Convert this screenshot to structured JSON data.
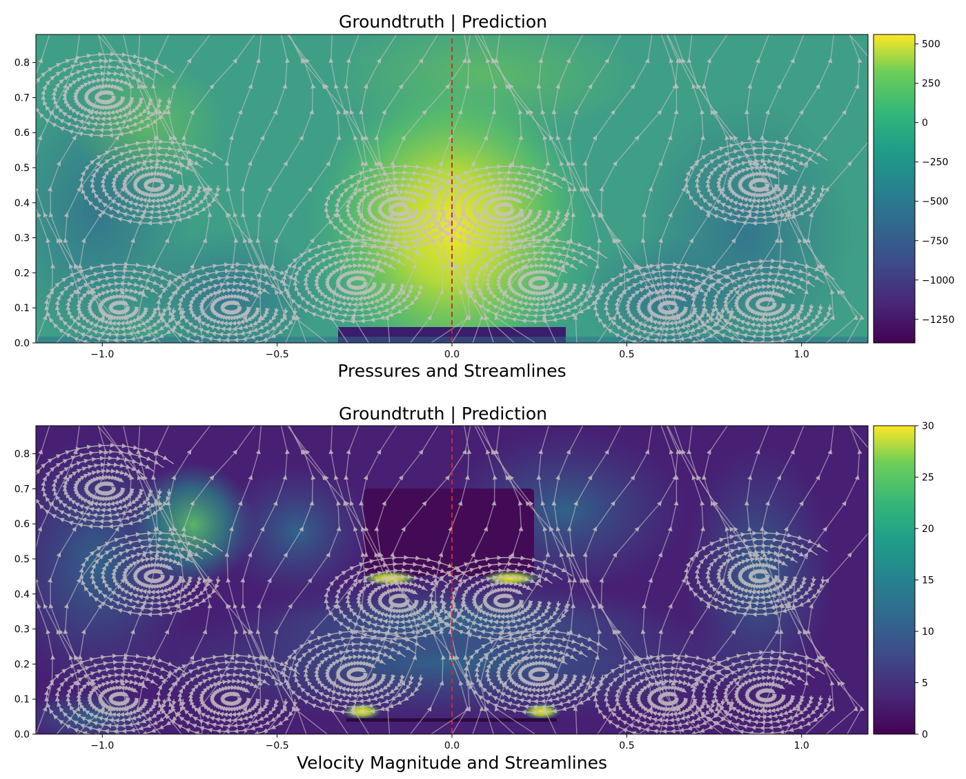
{
  "chart_data": [
    {
      "type": "heatmap",
      "title": "Groundtruth | Prediction",
      "xlabel": "Pressures and Streamlines",
      "ylabel": "",
      "xlim": [
        -1.19,
        1.19
      ],
      "ylim": [
        0.0,
        0.88
      ],
      "x_ticks": [
        "−1.0",
        "−0.5",
        "0.0",
        "0.5",
        "1.0"
      ],
      "x_tick_values": [
        -1.0,
        -0.5,
        0.0,
        0.5,
        1.0
      ],
      "y_ticks": [
        "0.0",
        "0.1",
        "0.2",
        "0.3",
        "0.4",
        "0.5",
        "0.6",
        "0.7",
        "0.8"
      ],
      "y_tick_values": [
        0.0,
        0.1,
        0.2,
        0.3,
        0.4,
        0.5,
        0.6,
        0.7,
        0.8
      ],
      "colorbar": {
        "range": [
          -1400,
          560
        ],
        "ticks": [
          "500",
          "250",
          "0",
          "−250",
          "−500",
          "−750",
          "−1000",
          "−1250"
        ],
        "tick_values": [
          500,
          250,
          0,
          -250,
          -500,
          -750,
          -1000,
          -1250
        ],
        "colormap": "viridis"
      },
      "divider_x": 0.0,
      "divider_color": "#d62728",
      "streamline_color": "#c9c2c4",
      "vortices": [
        [
          -0.95,
          0.1
        ],
        [
          -0.63,
          0.1
        ],
        [
          -0.27,
          0.17
        ],
        [
          0.25,
          0.17
        ],
        [
          0.62,
          0.1
        ],
        [
          0.9,
          0.11
        ],
        [
          -0.99,
          0.7
        ],
        [
          -0.15,
          0.38
        ],
        [
          0.15,
          0.38
        ],
        [
          -0.85,
          0.45
        ],
        [
          0.88,
          0.45
        ]
      ]
    },
    {
      "type": "heatmap",
      "title": "Groundtruth | Prediction",
      "xlabel": "Velocity Magnitude and Streamlines",
      "ylabel": "",
      "xlim": [
        -1.19,
        1.19
      ],
      "ylim": [
        0.0,
        0.88
      ],
      "x_ticks": [
        "−1.0",
        "−0.5",
        "0.0",
        "0.5",
        "1.0"
      ],
      "x_tick_values": [
        -1.0,
        -0.5,
        0.0,
        0.5,
        1.0
      ],
      "y_ticks": [
        "0.0",
        "0.1",
        "0.2",
        "0.3",
        "0.4",
        "0.5",
        "0.6",
        "0.7",
        "0.8"
      ],
      "y_tick_values": [
        0.0,
        0.1,
        0.2,
        0.3,
        0.4,
        0.5,
        0.6,
        0.7,
        0.8
      ],
      "colorbar": {
        "range": [
          0,
          30
        ],
        "ticks": [
          "30",
          "25",
          "20",
          "15",
          "10",
          "5",
          "0"
        ],
        "tick_values": [
          30,
          25,
          20,
          15,
          10,
          5,
          0
        ],
        "colormap": "viridis"
      },
      "divider_x": 0.0,
      "divider_color": "#d62728",
      "streamline_color": "#c9c2c4",
      "vortices": [
        [
          -0.95,
          0.1
        ],
        [
          -0.63,
          0.1
        ],
        [
          -0.27,
          0.17
        ],
        [
          0.25,
          0.17
        ],
        [
          0.62,
          0.1
        ],
        [
          0.9,
          0.11
        ],
        [
          -0.99,
          0.7
        ],
        [
          -0.15,
          0.38
        ],
        [
          0.15,
          0.38
        ],
        [
          -0.85,
          0.45
        ],
        [
          0.88,
          0.45
        ]
      ]
    }
  ]
}
